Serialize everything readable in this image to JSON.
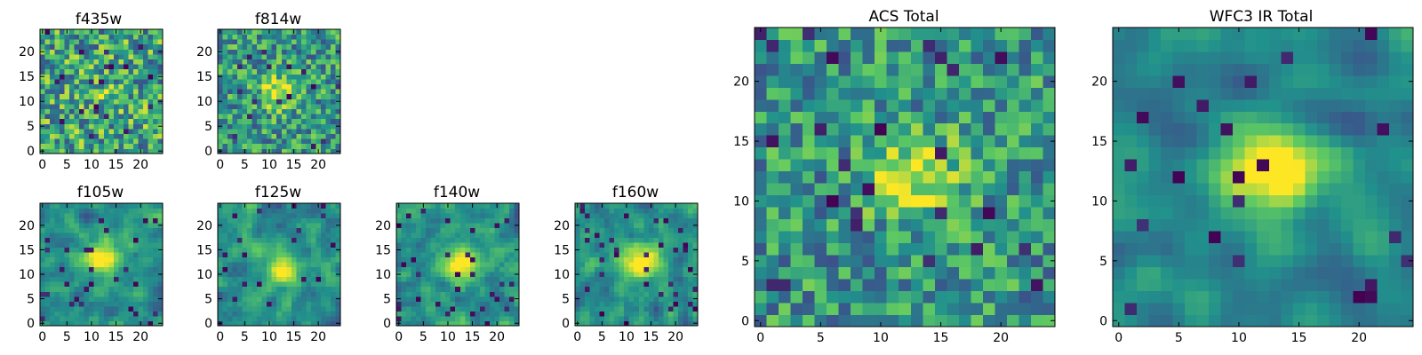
{
  "figure": {
    "colormap": "viridis",
    "colormap_stops": [
      "#440154",
      "#3b528b",
      "#21918c",
      "#5ec962",
      "#fde725"
    ]
  },
  "chart_data": [
    {
      "type": "heatmap",
      "title": "f435w",
      "xlim": [
        -0.5,
        24.5
      ],
      "ylim": [
        -0.5,
        24.5
      ],
      "grid_size": [
        25,
        25
      ],
      "xticks": [
        0,
        5,
        10,
        15,
        20
      ],
      "yticks": [
        0,
        5,
        10,
        15,
        20
      ],
      "xticklabels": [
        "0",
        "5",
        "10",
        "15",
        "20"
      ],
      "yticklabels": [
        "0",
        "5",
        "10",
        "15",
        "20"
      ],
      "peak": [
        12,
        12
      ],
      "peak_amplitude": 0.08,
      "peak_width": 3.0,
      "noise_level": 0.95,
      "dark_pixel_fraction": 0.03,
      "smoothing": 0,
      "seed": 11
    },
    {
      "type": "heatmap",
      "title": "f814w",
      "xlim": [
        -0.5,
        24.5
      ],
      "ylim": [
        -0.5,
        24.5
      ],
      "grid_size": [
        25,
        25
      ],
      "xticks": [
        0,
        5,
        10,
        15,
        20
      ],
      "yticks": [
        0,
        5,
        10,
        15,
        20
      ],
      "xticklabels": [
        "0",
        "5",
        "10",
        "15",
        "20"
      ],
      "yticklabels": [
        "0",
        "5",
        "10",
        "15",
        "20"
      ],
      "peak": [
        12,
        12
      ],
      "peak_amplitude": 0.35,
      "peak_width": 2.5,
      "noise_level": 0.8,
      "dark_pixel_fraction": 0.03,
      "smoothing": 0,
      "seed": 23
    },
    {
      "type": "heatmap",
      "title": "f105w",
      "xlim": [
        -0.5,
        24.5
      ],
      "ylim": [
        -0.5,
        24.5
      ],
      "grid_size": [
        25,
        25
      ],
      "xticks": [
        0,
        5,
        10,
        15,
        20
      ],
      "yticks": [
        0,
        5,
        10,
        15,
        20
      ],
      "xticklabels": [
        "0",
        "5",
        "10",
        "15",
        "20"
      ],
      "yticklabels": [
        "0",
        "5",
        "10",
        "15",
        "20"
      ],
      "peak": [
        12,
        13
      ],
      "peak_amplitude": 0.45,
      "peak_width": 2.5,
      "noise_level": 0.7,
      "dark_pixel_fraction": 0.04,
      "smoothing": 1,
      "seed": 37
    },
    {
      "type": "heatmap",
      "title": "f125w",
      "xlim": [
        -0.5,
        24.5
      ],
      "ylim": [
        -0.5,
        24.5
      ],
      "grid_size": [
        25,
        25
      ],
      "xticks": [
        0,
        5,
        10,
        15,
        20
      ],
      "yticks": [
        0,
        5,
        10,
        15,
        20
      ],
      "xticklabels": [
        "0",
        "5",
        "10",
        "15",
        "20"
      ],
      "yticklabels": [
        "0",
        "5",
        "10",
        "15",
        "20"
      ],
      "peak": [
        13,
        11
      ],
      "peak_amplitude": 0.45,
      "peak_width": 2.5,
      "noise_level": 0.7,
      "dark_pixel_fraction": 0.04,
      "smoothing": 1,
      "seed": 41
    },
    {
      "type": "heatmap",
      "title": "f140w",
      "xlim": [
        -0.5,
        24.5
      ],
      "ylim": [
        -0.5,
        24.5
      ],
      "grid_size": [
        25,
        25
      ],
      "xticks": [
        0,
        5,
        10,
        15,
        20
      ],
      "yticks": [
        0,
        5,
        10,
        15,
        20
      ],
      "xticklabels": [
        "0",
        "5",
        "10",
        "15",
        "20"
      ],
      "yticklabels": [
        "0",
        "5",
        "10",
        "15",
        "20"
      ],
      "peak": [
        13,
        12
      ],
      "peak_amplitude": 0.45,
      "peak_width": 2.5,
      "noise_level": 0.7,
      "dark_pixel_fraction": 0.04,
      "smoothing": 1,
      "seed": 53
    },
    {
      "type": "heatmap",
      "title": "f160w",
      "xlim": [
        -0.5,
        24.5
      ],
      "ylim": [
        -0.5,
        24.5
      ],
      "grid_size": [
        25,
        25
      ],
      "xticks": [
        0,
        5,
        10,
        15,
        20
      ],
      "yticks": [
        0,
        5,
        10,
        15,
        20
      ],
      "xticklabels": [
        "0",
        "5",
        "10",
        "15",
        "20"
      ],
      "yticklabels": [
        "0",
        "5",
        "10",
        "15",
        "20"
      ],
      "peak": [
        13,
        13
      ],
      "peak_amplitude": 0.5,
      "peak_width": 2.5,
      "noise_level": 0.65,
      "dark_pixel_fraction": 0.05,
      "smoothing": 1,
      "seed": 67
    },
    {
      "type": "heatmap",
      "title": "ACS Total",
      "xlim": [
        -0.5,
        24.5
      ],
      "ylim": [
        -0.5,
        24.5
      ],
      "grid_size": [
        25,
        25
      ],
      "xticks": [
        0,
        5,
        10,
        15,
        20
      ],
      "yticks": [
        0,
        5,
        10,
        15,
        20
      ],
      "xticklabels": [
        "0",
        "5",
        "10",
        "15",
        "20"
      ],
      "yticklabels": [
        "0",
        "5",
        "10",
        "15",
        "20"
      ],
      "peak": [
        13,
        12
      ],
      "peak_amplitude": 0.4,
      "peak_width": 2.5,
      "noise_level": 0.75,
      "dark_pixel_fraction": 0.035,
      "smoothing": 0,
      "seed": 79
    },
    {
      "type": "heatmap",
      "title": "WFC3 IR Total",
      "xlim": [
        -0.5,
        24.5
      ],
      "ylim": [
        -0.5,
        24.5
      ],
      "grid_size": [
        25,
        25
      ],
      "xticks": [
        0,
        5,
        10,
        15,
        20
      ],
      "yticks": [
        0,
        5,
        10,
        15,
        20
      ],
      "xticklabels": [
        "0",
        "5",
        "10",
        "15",
        "20"
      ],
      "yticklabels": [
        "0",
        "5",
        "10",
        "15",
        "20"
      ],
      "peak": [
        13,
        13
      ],
      "peak_amplitude": 0.6,
      "peak_width": 2.8,
      "noise_level": 0.55,
      "dark_pixel_fraction": 0.04,
      "smoothing": 2,
      "seed": 97
    }
  ]
}
